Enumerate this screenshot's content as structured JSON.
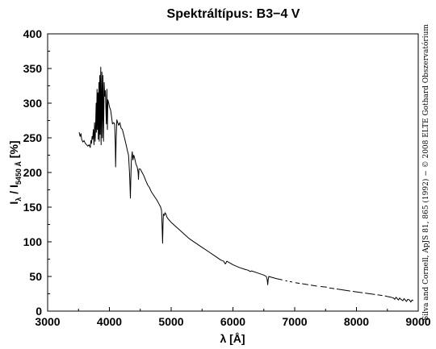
{
  "chart_data": {
    "type": "line",
    "title": "Spektráltípus: B3−4 V",
    "xlabel": "λ [Å]",
    "ylabel": "Iλ / I5450 Å [%]",
    "ylabel_parts": {
      "main1": "I",
      "sub1": "λ",
      "main2": " / I",
      "sub2": "5450 Å",
      "tail": " [%]"
    },
    "xlim": [
      3000,
      9000
    ],
    "ylim": [
      0,
      400
    ],
    "xticks": [
      3000,
      4000,
      5000,
      6000,
      7000,
      8000,
      9000
    ],
    "yticks": [
      0,
      50,
      100,
      150,
      200,
      250,
      300,
      350,
      400
    ],
    "grid": false,
    "legend": "none",
    "line_color": "#000000",
    "credit": "Silva and Cornell, ApJS 81, 865 (1992) − © 2008 ELTE Gothard Obszervatórium",
    "series": [
      {
        "segments": [
          [
            [
              3510,
              258
            ],
            [
              3525,
              252
            ],
            [
              3540,
              256
            ],
            [
              3550,
              248
            ],
            [
              3570,
              244
            ],
            [
              3590,
              246
            ],
            [
              3610,
              242
            ],
            [
              3630,
              240
            ],
            [
              3650,
              238
            ],
            [
              3670,
              240
            ],
            [
              3690,
              236
            ],
            [
              3700,
              246
            ],
            [
              3710,
              242
            ],
            [
              3720,
              252
            ],
            [
              3730,
              248
            ],
            [
              3740,
              262
            ],
            [
              3750,
              240
            ],
            [
              3760,
              272
            ],
            [
              3770,
              245
            ],
            [
              3785,
              300
            ],
            [
              3790,
              258
            ],
            [
              3800,
              320
            ],
            [
              3805,
              262
            ],
            [
              3815,
              315
            ],
            [
              3820,
              248
            ],
            [
              3830,
              330
            ],
            [
              3835,
              245
            ],
            [
              3845,
              340
            ],
            [
              3850,
              255
            ],
            [
              3860,
              352
            ],
            [
              3865,
              240
            ],
            [
              3878,
              345
            ],
            [
              3885,
              250
            ],
            [
              3895,
              340
            ],
            [
              3905,
              245
            ],
            [
              3915,
              330
            ],
            [
              3925,
              310
            ],
            [
              3935,
              318
            ],
            [
              3950,
              270
            ],
            [
              3960,
              320
            ],
            [
              3967,
              262
            ],
            [
              3975,
              305
            ],
            [
              3990,
              300
            ],
            [
              4000,
              295
            ],
            [
              4020,
              290
            ],
            [
              4035,
              280
            ],
            [
              4050,
              270
            ],
            [
              4070,
              272
            ],
            [
              4085,
              270
            ],
            [
              4095,
              240
            ],
            [
              4101,
              208
            ],
            [
              4108,
              245
            ],
            [
              4120,
              276
            ],
            [
              4135,
              272
            ],
            [
              4150,
              268
            ],
            [
              4170,
              272
            ],
            [
              4190,
              264
            ],
            [
              4210,
              262
            ],
            [
              4230,
              255
            ],
            [
              4250,
              248
            ],
            [
              4270,
              240
            ],
            [
              4290,
              232
            ],
            [
              4310,
              225
            ],
            [
              4325,
              200
            ],
            [
              4332,
              185
            ],
            [
              4340,
              163
            ],
            [
              4347,
              190
            ],
            [
              4355,
              218
            ],
            [
              4370,
              230
            ],
            [
              4380,
              218
            ],
            [
              4395,
              225
            ],
            [
              4410,
              220
            ],
            [
              4430,
              212
            ],
            [
              4450,
              208
            ],
            [
              4465,
              200
            ],
            [
              4471,
              190
            ],
            [
              4478,
              205
            ],
            [
              4500,
              205
            ],
            [
              4530,
              200
            ],
            [
              4560,
              195
            ],
            [
              4590,
              188
            ],
            [
              4620,
              182
            ],
            [
              4650,
              178
            ],
            [
              4680,
              172
            ],
            [
              4710,
              168
            ],
            [
              4740,
              164
            ],
            [
              4770,
              160
            ],
            [
              4800,
              155
            ],
            [
              4830,
              150
            ],
            [
              4845,
              145
            ],
            [
              4852,
              125
            ],
            [
              4861,
              98
            ],
            [
              4868,
              125
            ],
            [
              4875,
              140
            ],
            [
              4890,
              138
            ],
            [
              4900,
              142
            ],
            [
              4915,
              140
            ],
            [
              4930,
              136
            ],
            [
              4950,
              133
            ],
            [
              4980,
              130
            ],
            [
              5000,
              128
            ],
            [
              5050,
              124
            ],
            [
              5100,
              120
            ],
            [
              5150,
              116
            ],
            [
              5200,
              112
            ],
            [
              5250,
              108
            ],
            [
              5300,
              104
            ],
            [
              5400,
              98
            ],
            [
              5500,
              92
            ],
            [
              5600,
              86
            ],
            [
              5700,
              80
            ],
            [
              5750,
              77
            ],
            [
              5800,
              74
            ],
            [
              5850,
              72
            ],
            [
              5876,
              68
            ],
            [
              5890,
              70
            ],
            [
              5900,
              72
            ],
            [
              6000,
              67
            ],
            [
              6100,
              63
            ],
            [
              6200,
              60
            ],
            [
              6250,
              59
            ],
            [
              6280,
              57
            ],
            [
              6300,
              58
            ],
            [
              6400,
              55
            ],
            [
              6500,
              52
            ],
            [
              6540,
              50
            ],
            [
              6555,
              45
            ],
            [
              6563,
              38
            ],
            [
              6570,
              45
            ],
            [
              6580,
              50
            ],
            [
              6620,
              49
            ],
            [
              6700,
              47
            ],
            [
              6800,
              45
            ]
          ],
          [
            [
              6850,
              44
            ],
            [
              6880,
              43.5
            ]
          ],
          [
            [
              6920,
              42.5
            ],
            [
              6960,
              42
            ]
          ],
          [
            [
              7010,
              41
            ],
            [
              7080,
              40
            ]
          ],
          [
            [
              7120,
              39.5
            ],
            [
              7220,
              38
            ]
          ],
          [
            [
              7260,
              37.5
            ],
            [
              7360,
              36
            ]
          ],
          [
            [
              7420,
              35.5
            ],
            [
              7520,
              34.5
            ]
          ],
          [
            [
              7560,
              33.5
            ],
            [
              7640,
              32.5
            ]
          ],
          [
            [
              7680,
              32
            ],
            [
              7900,
              29
            ]
          ],
          [
            [
              7940,
              28.5
            ],
            [
              8100,
              26.5
            ]
          ],
          [
            [
              8140,
              26
            ],
            [
              8300,
              24
            ]
          ],
          [
            [
              8340,
              23.5
            ],
            [
              8420,
              22.5
            ]
          ],
          [
            [
              8460,
              22
            ],
            [
              8500,
              21
            ],
            [
              8560,
              20
            ],
            [
              8600,
              19
            ],
            [
              8620,
              17
            ],
            [
              8640,
              20
            ],
            [
              8660,
              18
            ],
            [
              8680,
              16
            ],
            [
              8700,
              19
            ],
            [
              8720,
              17
            ],
            [
              8750,
              15
            ],
            [
              8770,
              18
            ],
            [
              8790,
              16
            ],
            [
              8810,
              14
            ],
            [
              8830,
              17
            ],
            [
              8860,
              16
            ],
            [
              8880,
              13
            ],
            [
              8900,
              16
            ],
            [
              8920,
              15
            ]
          ]
        ]
      }
    ]
  }
}
